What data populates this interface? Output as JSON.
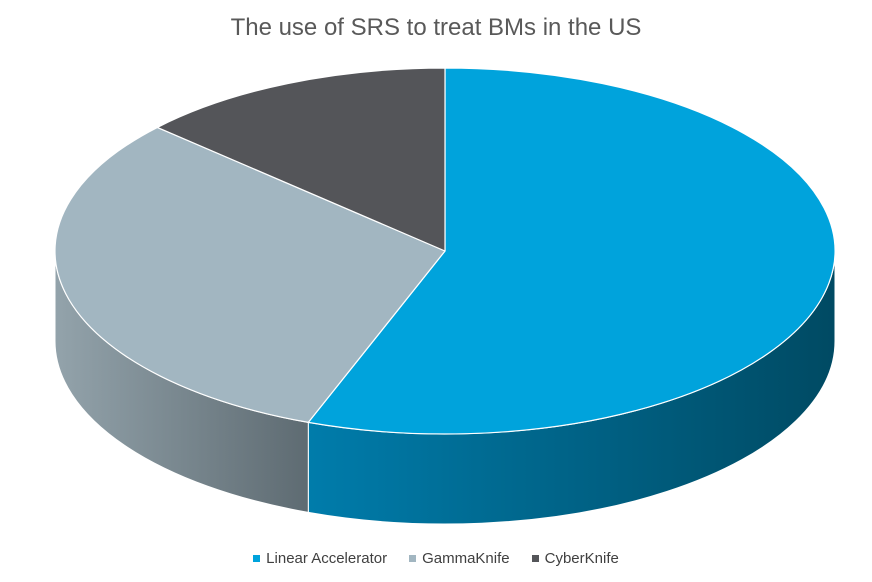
{
  "chart_data": {
    "type": "pie",
    "title": "The use of SRS to treat BMs in the US",
    "legend_position": "bottom",
    "three_d": true,
    "slices": [
      {
        "label": "Linear Accelerator",
        "value": 55.7,
        "color": "#00a3dc",
        "side_dark": "#004a63",
        "side_light": "#007cab"
      },
      {
        "label": "GammaKnife",
        "value": 31.1,
        "color": "#a2b6c1",
        "side_dark": "#5e6b72",
        "side_light": "#93a3ab"
      },
      {
        "label": "CyberKnife",
        "value": 13.2,
        "color": "#545559",
        "side_dark": "#2e2f31",
        "side_light": "#48494c"
      }
    ]
  }
}
